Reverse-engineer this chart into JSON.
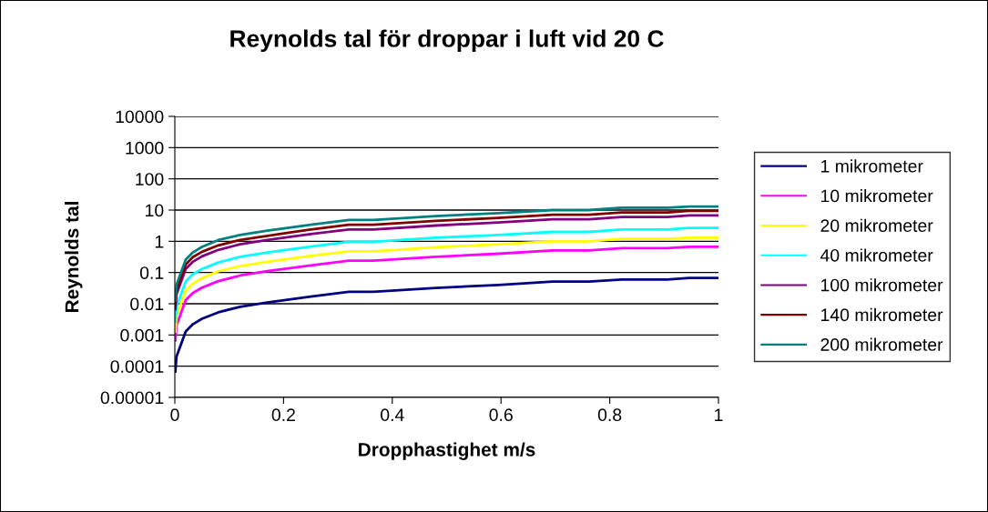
{
  "chart_data": {
    "type": "line",
    "title": "Reynolds tal för droppar i luft vid 20 C",
    "xlabel": "Dropphastighet m/s",
    "ylabel": "Reynolds tal",
    "x": [
      0.001,
      0.003,
      0.02,
      0.033,
      0.05,
      0.08,
      0.12,
      0.17,
      0.25,
      0.32,
      0.365,
      0.48,
      0.595,
      0.695,
      0.762,
      0.822,
      0.906,
      0.946,
      1.0
    ],
    "series": [
      {
        "name": "1 mikrometer",
        "color": "#000080",
        "values": [
          6.7e-05,
          0.0002,
          0.0013,
          0.0022,
          0.0033,
          0.0053,
          0.008,
          0.011,
          0.017,
          0.024,
          0.024,
          0.032,
          0.04,
          0.051,
          0.051,
          0.06,
          0.06,
          0.067,
          0.067
        ]
      },
      {
        "name": "10 mikrometer",
        "color": "#ff00ff",
        "values": [
          0.00067,
          0.002,
          0.013,
          0.022,
          0.033,
          0.053,
          0.08,
          0.11,
          0.17,
          0.24,
          0.24,
          0.32,
          0.4,
          0.51,
          0.51,
          0.6,
          0.6,
          0.67,
          0.67
        ]
      },
      {
        "name": "20 mikrometer",
        "color": "#ffff00",
        "values": [
          0.0013,
          0.004,
          0.026,
          0.044,
          0.066,
          0.11,
          0.16,
          0.22,
          0.34,
          0.48,
          0.48,
          0.64,
          0.8,
          1.0,
          1.0,
          1.2,
          1.2,
          1.3,
          1.3
        ]
      },
      {
        "name": "40 mikrometer",
        "color": "#00ffff",
        "values": [
          0.0027,
          0.008,
          0.052,
          0.088,
          0.13,
          0.21,
          0.32,
          0.44,
          0.68,
          0.96,
          0.96,
          1.3,
          1.6,
          2.0,
          2.0,
          2.4,
          2.4,
          2.7,
          2.7
        ]
      },
      {
        "name": "100 mikrometer",
        "color": "#800080",
        "values": [
          0.0067,
          0.02,
          0.13,
          0.22,
          0.33,
          0.53,
          0.8,
          1.1,
          1.7,
          2.4,
          2.4,
          3.2,
          4.0,
          5.1,
          5.1,
          6.0,
          6.0,
          6.7,
          6.7
        ]
      },
      {
        "name": "140 mikrometer",
        "color": "#800000",
        "values": [
          0.0094,
          0.028,
          0.18,
          0.31,
          0.46,
          0.74,
          1.1,
          1.5,
          2.4,
          3.4,
          3.4,
          4.5,
          5.6,
          7.1,
          7.1,
          8.4,
          8.4,
          9.4,
          9.4
        ]
      },
      {
        "name": "200 mikrometer",
        "color": "#008080",
        "values": [
          0.013,
          0.04,
          0.26,
          0.44,
          0.66,
          1.1,
          1.6,
          2.2,
          3.4,
          4.8,
          4.8,
          6.4,
          8.0,
          10,
          10,
          12,
          12,
          13,
          13
        ]
      }
    ],
    "log": "y",
    "xlim": [
      0,
      1
    ],
    "xticks": [
      0,
      {
        "value": 0.2,
        "label": "0.2"
      },
      {
        "value": 0.4,
        "label": "0.4"
      },
      {
        "value": 0.6,
        "label": "0.6"
      },
      {
        "value": 0.8,
        "label": "0.8"
      },
      1
    ],
    "ylim": [
      1e-05,
      10000
    ],
    "yticks": [
      {
        "value": 1e-05,
        "label": "0.00001"
      },
      {
        "value": 0.0001,
        "label": "0.0001"
      },
      {
        "value": 0.001,
        "label": "0.001"
      },
      {
        "value": 0.01,
        "label": "0.01"
      },
      {
        "value": 0.1,
        "label": "0.1"
      },
      1,
      10,
      100,
      1000,
      10000
    ],
    "grid": "y",
    "legend": "right",
    "marker": "none",
    "line_style": "solid"
  }
}
